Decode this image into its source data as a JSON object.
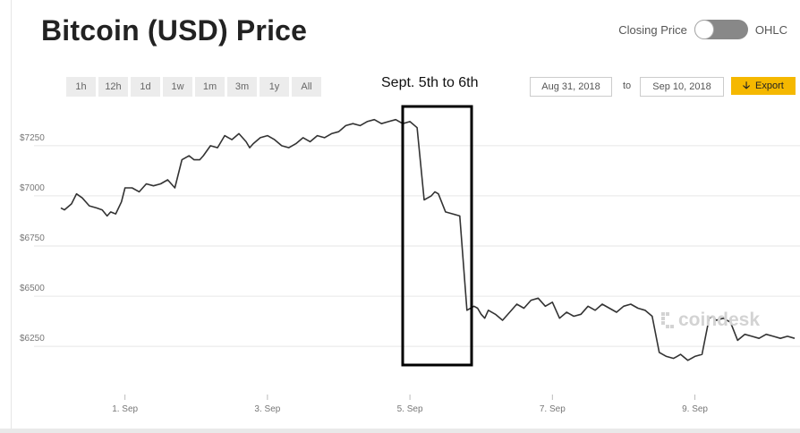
{
  "title": "Bitcoin (USD) Price",
  "toggle": {
    "left_label": "Closing Price",
    "right_label": "OHLC"
  },
  "range_buttons": [
    "1h",
    "12h",
    "1d",
    "1w",
    "1m",
    "3m",
    "1y",
    "All"
  ],
  "annotation": "Sept. 5th to 6th",
  "date_range": {
    "from": "Aug 31, 2018",
    "to_label": "to",
    "to": "Sep 10, 2018"
  },
  "export_label": "Export",
  "watermark": "coindesk",
  "colors": {
    "line": "#333333",
    "grid": "#e6e6e6",
    "export": "#f5b800",
    "highlight_box": "#000000"
  },
  "chart_data": {
    "type": "line",
    "title": "",
    "xlabel": "",
    "ylabel": "",
    "x_ticks": [
      "1. Sep",
      "3. Sep",
      "5. Sep",
      "7. Sep",
      "9. Sep"
    ],
    "y_ticks": [
      "$6250",
      "$6500",
      "$6750",
      "$7000",
      "$7250"
    ],
    "y_tick_values": [
      6250,
      6500,
      6750,
      7000,
      7250
    ],
    "xlim": [
      0.1,
      10.4
    ],
    "ylim": [
      6050,
      7450
    ],
    "grid": true,
    "highlight_range": [
      "2018-09-05",
      "2018-09-06"
    ],
    "series": [
      {
        "name": "",
        "x": [
          0.1,
          0.15,
          0.25,
          0.32,
          0.4,
          0.5,
          0.6,
          0.68,
          0.75,
          0.8,
          0.87,
          0.95,
          1.0,
          1.1,
          1.2,
          1.3,
          1.4,
          1.5,
          1.6,
          1.7,
          1.8,
          1.9,
          1.97,
          2.05,
          2.1,
          2.2,
          2.3,
          2.4,
          2.5,
          2.6,
          2.7,
          2.75,
          2.8,
          2.9,
          3.0,
          3.1,
          3.2,
          3.3,
          3.4,
          3.5,
          3.6,
          3.7,
          3.8,
          3.9,
          4.0,
          4.1,
          4.2,
          4.3,
          4.4,
          4.5,
          4.6,
          4.7,
          4.8,
          4.9,
          5.0,
          5.1,
          5.2,
          5.25,
          5.3,
          5.35,
          5.4,
          5.5,
          5.6,
          5.7,
          5.8,
          5.9,
          5.95,
          6.0,
          6.05,
          6.1,
          6.2,
          6.3,
          6.4,
          6.5,
          6.6,
          6.7,
          6.8,
          6.9,
          7.0,
          7.1,
          7.2,
          7.3,
          7.4,
          7.5,
          7.6,
          7.7,
          7.8,
          7.9,
          8.0,
          8.1,
          8.2,
          8.3,
          8.4,
          8.5,
          8.6,
          8.7,
          8.75,
          8.8,
          8.9,
          9.0,
          9.1,
          9.2,
          9.25,
          9.3,
          9.4,
          9.5,
          9.6,
          9.7,
          9.8,
          9.9,
          10.0,
          10.1,
          10.2,
          10.3,
          10.4
        ],
        "values": [
          6940,
          6930,
          6960,
          7010,
          6990,
          6950,
          6940,
          6930,
          6900,
          6920,
          6910,
          6970,
          7040,
          7040,
          7020,
          7060,
          7050,
          7060,
          7080,
          7040,
          7180,
          7200,
          7180,
          7180,
          7200,
          7250,
          7240,
          7300,
          7280,
          7310,
          7270,
          7240,
          7260,
          7290,
          7300,
          7280,
          7250,
          7240,
          7260,
          7290,
          7270,
          7300,
          7290,
          7310,
          7320,
          7350,
          7360,
          7350,
          7370,
          7380,
          7360,
          7370,
          7380,
          7360,
          7370,
          7340,
          6980,
          6990,
          7000,
          7020,
          7010,
          6920,
          6910,
          6900,
          6430,
          6450,
          6440,
          6410,
          6390,
          6430,
          6410,
          6380,
          6420,
          6460,
          6440,
          6480,
          6490,
          6450,
          6470,
          6390,
          6420,
          6400,
          6410,
          6450,
          6430,
          6460,
          6440,
          6420,
          6450,
          6460,
          6440,
          6430,
          6400,
          6220,
          6200,
          6190,
          6200,
          6210,
          6180,
          6200,
          6210,
          6390,
          6400,
          6380,
          6390,
          6370,
          6280,
          6310,
          6300,
          6290,
          6310,
          6300,
          6290,
          6300,
          6290
        ]
      }
    ]
  }
}
